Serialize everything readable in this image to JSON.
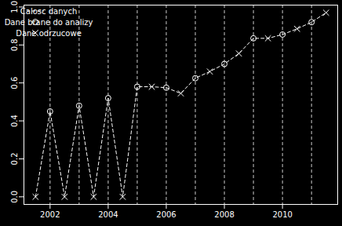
{
  "chart_data": {
    "type": "line",
    "legend": "top-left",
    "grid": true,
    "xlim": [
      2001.1,
      2011.9
    ],
    "xticks": [
      2002,
      2004,
      2006,
      2008,
      2010
    ],
    "ylim": [
      -0.04,
      1.01
    ],
    "yticks": [
      {
        "value": 0,
        "label": "0.0"
      },
      {
        "value": 0.2,
        "label": "0.2"
      },
      {
        "value": 0.4,
        "label": "0.4"
      },
      {
        "value": 0.6,
        "label": "0.6"
      },
      {
        "value": 0.8,
        "label": "0.8"
      },
      {
        "value": 1.0,
        "label": "1.0"
      }
    ],
    "series": [
      {
        "name": "Calosc danych",
        "type": "line",
        "line_style": "dashed",
        "color": "#ffffff",
        "x": [
          2001.5,
          2002,
          2002.5,
          2003,
          2003.5,
          2004,
          2004.5,
          2005,
          2005.5,
          2006,
          2006.5,
          2007,
          2007.5,
          2008,
          2008.5,
          2009,
          2009.5,
          2010,
          2010.5,
          2011,
          2011.5
        ],
        "values": [
          0,
          0.45,
          0,
          0.48,
          0,
          0.52,
          0,
          0.58,
          0.58,
          0.575,
          0.545,
          0.625,
          0.66,
          0.7,
          0.755,
          0.835,
          0.835,
          0.855,
          0.885,
          0.92,
          0.97
        ]
      },
      {
        "name": "Dane brane do analizy",
        "type": "scatter",
        "marker": "circle",
        "color": "#ffffff",
        "x": [
          2002,
          2003,
          2004,
          2005,
          2006,
          2007,
          2008,
          2009,
          2010,
          2011
        ],
        "values": [
          0.45,
          0.48,
          0.52,
          0.58,
          0.575,
          0.625,
          0.7,
          0.835,
          0.855,
          0.92
        ]
      },
      {
        "name": "Dane odrzucowe",
        "type": "scatter",
        "marker": "x",
        "color": "#ffffff",
        "x": [
          2001.5,
          2002.5,
          2003.5,
          2004.5,
          2005.5,
          2006.5,
          2007.5,
          2008.5,
          2009.5,
          2010.5,
          2011.5
        ],
        "values": [
          0,
          0,
          0,
          0,
          0.58,
          0.545,
          0.66,
          0.755,
          0.835,
          0.885,
          0.97
        ]
      }
    ]
  }
}
